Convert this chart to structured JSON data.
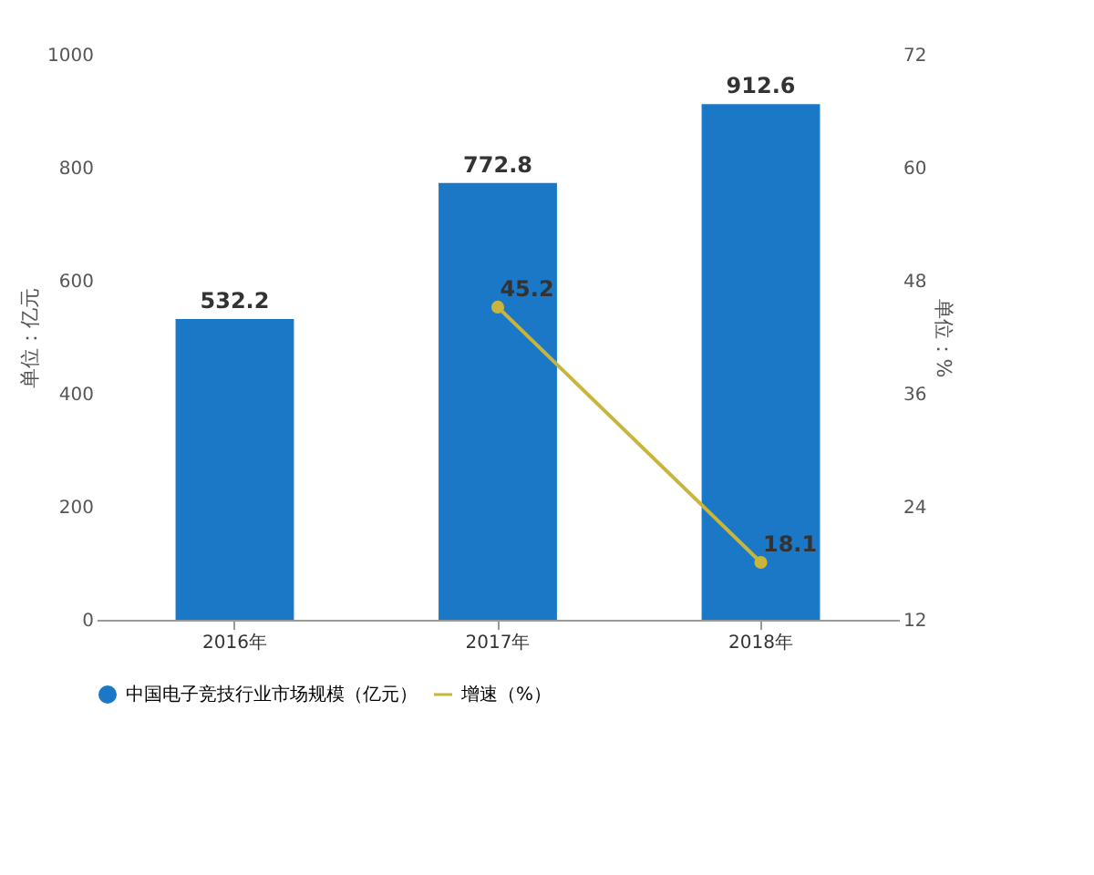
{
  "chart_data": {
    "type": "bar",
    "categories": [
      "2016年",
      "2017年",
      "2018年"
    ],
    "series": [
      {
        "name": "中国电子竞技行业市场规模（亿元）",
        "color": "#1b78c6",
        "values": [
          532.2,
          772.8,
          912.6
        ]
      },
      {
        "name": "增速（%）",
        "color": "#c9b53c",
        "type": "line",
        "axis": "y2",
        "values": [
          null,
          45.2,
          18.1
        ]
      }
    ],
    "ylabel": "单位：亿元",
    "y2label": "单位：%",
    "ylim": [
      0,
      1000
    ],
    "yticks": [
      0,
      200,
      400,
      600,
      800,
      1000
    ],
    "y2lim": [
      12,
      72
    ],
    "y2ticks": [
      12,
      24,
      36,
      48,
      60,
      72
    ],
    "data_labels": true,
    "legend": "bottom",
    "marker": "circle",
    "grid": false
  }
}
